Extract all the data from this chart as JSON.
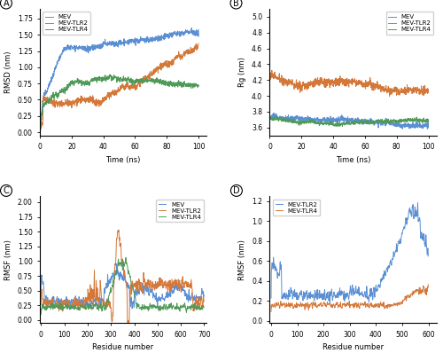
{
  "colors": {
    "blue": "#5b8fd4",
    "orange": "#d4783a",
    "green": "#4e9a58"
  },
  "panel_A": {
    "xlabel": "Time (ns)",
    "ylabel": "RMSD (nm)",
    "xlim": [
      0,
      105
    ],
    "ylim": [
      -0.05,
      1.9
    ],
    "yticks": [
      0.0,
      0.25,
      0.5,
      0.75,
      1.0,
      1.25,
      1.5,
      1.75
    ],
    "xticks": [
      0,
      20,
      40,
      60,
      80,
      100
    ],
    "legend": [
      "MEV",
      "MEV-TLR2",
      "MEV-TLR4"
    ],
    "label": "A"
  },
  "panel_B": {
    "xlabel": "Time (ns)",
    "ylabel": "Rg (nm)",
    "xlim": [
      0,
      105
    ],
    "ylim": [
      3.5,
      5.1
    ],
    "yticks": [
      3.6,
      3.8,
      4.0,
      4.2,
      4.4,
      4.6,
      4.8,
      5.0
    ],
    "xticks": [
      0,
      20,
      40,
      60,
      80,
      100
    ],
    "legend": [
      "MEV",
      "MEV-TLR2",
      "MEV-TLR4"
    ],
    "label": "B"
  },
  "panel_C": {
    "xlabel": "Residue number",
    "ylabel": "RMSF (nm)",
    "xlim": [
      -5,
      710
    ],
    "ylim": [
      -0.05,
      2.1
    ],
    "yticks": [
      0.0,
      0.25,
      0.5,
      0.75,
      1.0,
      1.25,
      1.5,
      1.75,
      2.0
    ],
    "xticks": [
      0,
      100,
      200,
      300,
      400,
      500,
      600,
      700
    ],
    "legend": [
      "MEV",
      "MEV-TLR2",
      "MEV-TLR4"
    ],
    "label": "C"
  },
  "panel_D": {
    "xlabel": "Residue number",
    "ylabel": "RMSF (nm)",
    "xlim": [
      -5,
      630
    ],
    "ylim": [
      -0.02,
      1.25
    ],
    "yticks": [
      0.0,
      0.2,
      0.4,
      0.6,
      0.8,
      1.0,
      1.2
    ],
    "xticks": [
      0,
      100,
      200,
      300,
      400,
      500,
      600
    ],
    "legend": [
      "MEV-TLR2",
      "MEV-TLR4"
    ],
    "label": "D"
  }
}
